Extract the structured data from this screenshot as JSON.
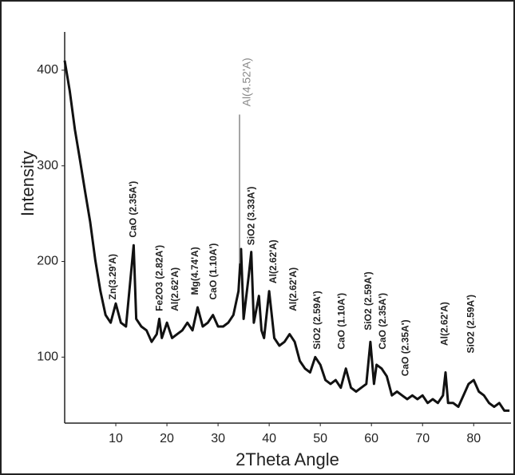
{
  "chart_data": {
    "type": "line",
    "xlabel": "2Theta Angle",
    "ylabel": "Intensity",
    "xlim": [
      0,
      87.3
    ],
    "ylim": [
      31,
      440
    ],
    "xticks": [
      10,
      20,
      30,
      40,
      50,
      60,
      70,
      80
    ],
    "yticks": [
      100,
      200,
      300,
      400
    ],
    "series": [
      {
        "color": "#111111",
        "x": [
          0,
          1,
          2,
          3,
          4,
          5,
          6,
          7,
          8,
          9,
          10,
          11,
          12,
          13.5,
          14,
          15,
          16,
          17,
          18,
          18.5,
          19,
          20,
          21,
          22,
          23,
          24,
          25,
          26,
          27,
          28,
          29,
          30,
          31,
          32,
          33,
          34,
          34.5,
          35,
          36,
          36.5,
          37,
          38,
          38.5,
          39,
          40,
          41,
          42,
          43,
          44,
          45,
          46,
          47,
          48,
          49,
          50,
          51,
          52,
          53,
          54,
          55,
          56,
          57,
          58,
          59,
          59.8,
          60.5,
          61,
          62,
          63,
          64,
          65,
          66,
          67,
          68,
          69,
          70,
          71,
          72,
          73,
          74,
          74.5,
          75,
          76,
          77,
          78,
          79,
          80,
          81,
          82,
          83,
          84,
          85,
          86,
          87
        ],
        "values": [
          410,
          378,
          338,
          306,
          273,
          241,
          201,
          169,
          144,
          136,
          156,
          136,
          132,
          217,
          140,
          132,
          128,
          116,
          124,
          140,
          120,
          136,
          120,
          124,
          128,
          136,
          128,
          152,
          132,
          136,
          144,
          132,
          132,
          136,
          144,
          169,
          213,
          140,
          185,
          210,
          136,
          164,
          128,
          120,
          169,
          120,
          112,
          116,
          124,
          116,
          96,
          88,
          84,
          100,
          92,
          76,
          72,
          76,
          68,
          88,
          68,
          64,
          68,
          72,
          116,
          72,
          92,
          88,
          80,
          60,
          64,
          60,
          56,
          60,
          56,
          60,
          52,
          56,
          52,
          60,
          84,
          52,
          52,
          48,
          60,
          72,
          76,
          64,
          60,
          52,
          48,
          52,
          44,
          44
        ]
      }
    ],
    "annotations": [
      {
        "text": "Zn(3.29'A)",
        "x": 9.5,
        "y": 160
      },
      {
        "text": "CaO (2.35A')",
        "x": 13.5,
        "y": 225
      },
      {
        "text": "Fe2O3 (2.82A')",
        "x": 18.6,
        "y": 148
      },
      {
        "text": "Al(2.62'A)",
        "x": 21.7,
        "y": 148
      },
      {
        "text": "Mg(4.74'A)",
        "x": 25.6,
        "y": 165
      },
      {
        "text": "CaO (1.10A')",
        "x": 29.2,
        "y": 160
      },
      {
        "text": "Al(4.52'A)",
        "x": 34.2,
        "y": 362,
        "color": "#888888"
      },
      {
        "text": "SiO2 (3.33A')",
        "x": 36.6,
        "y": 217
      },
      {
        "text": "Al(2.62'A)",
        "x": 40.9,
        "y": 177
      },
      {
        "text": "Al(2.62'A)",
        "x": 44.8,
        "y": 148
      },
      {
        "text": "SiO2 (2.59A')",
        "x": 49.5,
        "y": 108
      },
      {
        "text": "CaO (1.10A')",
        "x": 54.2,
        "y": 108
      },
      {
        "text": "SiO2 (2.59A')",
        "x": 59.5,
        "y": 128
      },
      {
        "text": "CaO (2.35A')",
        "x": 62.3,
        "y": 108
      },
      {
        "text": "CaO (2.35A')",
        "x": 66.7,
        "y": 80
      },
      {
        "text": "Al(2.62'A)",
        "x": 74.4,
        "y": 112
      },
      {
        "text": "SiO2 (2.59A')",
        "x": 79.5,
        "y": 104
      }
    ]
  }
}
